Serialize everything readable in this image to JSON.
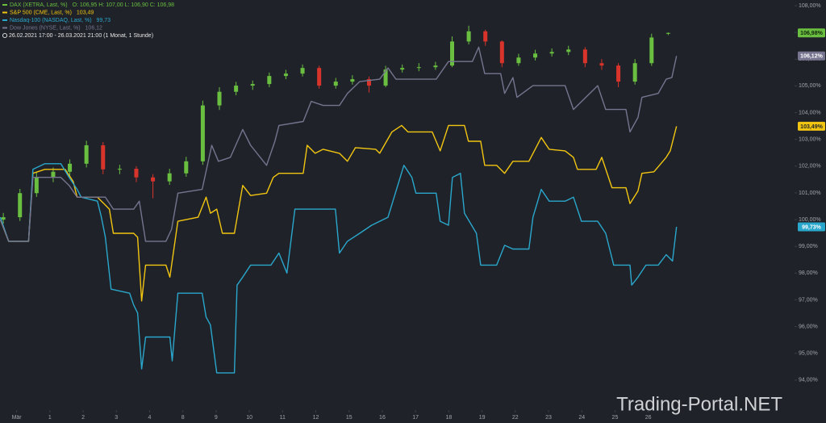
{
  "chart_data": {
    "type": "line",
    "subtitle": "26.02.2021 17:00 - 26.03.2021 21:00  (1 Monat, 1 Stunde)",
    "watermark": "Trading-Portal.NET",
    "xlim": [
      -0.5,
      23.4
    ],
    "xticks": [
      {
        "value": 0,
        "label": "Mär"
      },
      1,
      2,
      3,
      4,
      {
        "value": 5,
        "label": "8"
      },
      {
        "value": 6,
        "label": "9"
      },
      {
        "value": 7,
        "label": "10"
      },
      {
        "value": 8,
        "label": "11"
      },
      {
        "value": 9,
        "label": "12"
      },
      {
        "value": 10,
        "label": "15"
      },
      {
        "value": 11,
        "label": "16"
      },
      {
        "value": 12,
        "label": "17"
      },
      {
        "value": 13,
        "label": "18"
      },
      {
        "value": 14,
        "label": "19"
      },
      {
        "value": 15,
        "label": "22"
      },
      {
        "value": 16,
        "label": "23"
      },
      {
        "value": 17,
        "label": "24"
      },
      {
        "value": 18,
        "label": "25"
      },
      {
        "value": 19,
        "label": "26"
      }
    ],
    "ylim": [
      93,
      108
    ],
    "yticks": [
      {
        "value": 94,
        "label": "94,00%"
      },
      {
        "value": 95,
        "label": "95,00%"
      },
      {
        "value": 96,
        "label": "96,00%"
      },
      {
        "value": 97,
        "label": "97,00%"
      },
      {
        "value": 98,
        "label": "98,00%"
      },
      {
        "value": 99,
        "label": "99,00%"
      },
      {
        "value": 100,
        "label": "100,00%"
      },
      {
        "value": 101,
        "label": "101,00%"
      },
      {
        "value": 102,
        "label": "102,00%"
      },
      {
        "value": 103,
        "label": "103,00%"
      },
      {
        "value": 104,
        "label": "104,00%"
      },
      {
        "value": 105,
        "label": "105,00%"
      },
      {
        "value": 106,
        "label": "106,00%"
      },
      {
        "value": 107,
        "label": "107,00%"
      },
      {
        "value": 108,
        "label": "108,00%"
      }
    ],
    "grid": false,
    "series": [
      {
        "name": "DAX (XETRA, Last, %)",
        "detail": "O: 106,95  H: 107,00  L: 106,90  C: 106,98",
        "type": "candlestick",
        "color": "#6abf40",
        "down_color": "#d9342b",
        "last_label": "106,98%",
        "x": [
          -0.4,
          0.1,
          0.6,
          1.1,
          1.6,
          2.1,
          2.6,
          3.1,
          3.6,
          4.1,
          4.6,
          5.1,
          5.6,
          6.1,
          6.6,
          7.1,
          7.6,
          8.1,
          8.6,
          9.1,
          9.6,
          10.1,
          10.6,
          11.1,
          11.6,
          12.1,
          12.6,
          13.1,
          13.6,
          14.1,
          14.6,
          15.1,
          15.6,
          16.1,
          16.6,
          17.1,
          17.6,
          18.1,
          18.6,
          19.1,
          19.6
        ],
        "open": [
          100.0,
          100.09,
          100.99,
          101.58,
          101.79,
          102.09,
          102.78,
          101.88,
          101.9,
          101.58,
          101.43,
          101.73,
          102.18,
          104.27,
          104.78,
          105.01,
          105.07,
          105.37,
          105.46,
          105.67,
          105.01,
          105.16,
          105.25,
          105.01,
          105.61,
          105.67,
          105.7,
          105.76,
          106.66,
          107.04,
          106.66,
          105.85,
          106.06,
          106.21,
          106.27,
          106.36,
          105.85,
          105.76,
          105.16,
          105.85,
          106.95
        ],
        "high": [
          100.25,
          101.15,
          101.75,
          101.95,
          102.25,
          102.95,
          102.9,
          102.05,
          102.0,
          101.7,
          101.9,
          102.35,
          104.45,
          104.95,
          105.15,
          105.2,
          105.5,
          105.6,
          105.8,
          105.75,
          105.3,
          105.4,
          105.35,
          105.75,
          105.8,
          105.85,
          105.9,
          106.85,
          107.25,
          107.1,
          106.7,
          106.2,
          106.35,
          106.4,
          106.5,
          106.45,
          106.0,
          105.85,
          106.0,
          106.95,
          107.0
        ],
        "low": [
          99.85,
          99.95,
          100.85,
          101.4,
          101.65,
          101.95,
          101.7,
          101.7,
          101.4,
          100.8,
          101.3,
          101.6,
          102.05,
          104.1,
          104.65,
          104.85,
          104.95,
          105.25,
          105.35,
          104.9,
          104.9,
          105.05,
          104.75,
          104.95,
          105.5,
          105.55,
          105.6,
          105.7,
          106.55,
          106.5,
          105.7,
          105.75,
          105.95,
          106.1,
          106.15,
          105.7,
          105.6,
          104.95,
          105.05,
          105.75,
          106.9
        ],
        "close": [
          100.09,
          100.99,
          101.58,
          101.79,
          102.09,
          102.78,
          101.88,
          101.9,
          101.58,
          101.43,
          101.73,
          102.18,
          104.27,
          104.78,
          105.01,
          105.07,
          105.37,
          105.46,
          105.67,
          105.01,
          105.16,
          105.25,
          105.01,
          105.61,
          105.67,
          105.7,
          105.76,
          106.66,
          107.04,
          106.66,
          105.85,
          106.06,
          106.21,
          106.27,
          106.36,
          105.85,
          105.76,
          105.16,
          105.85,
          106.81,
          106.98
        ]
      },
      {
        "name": "S&P 500 (CME, Last, %)",
        "detail": "103,49",
        "color": "#f2c511",
        "last_label": "103,49%",
        "x": [
          -0.49,
          -0.24,
          0.36,
          0.49,
          0.85,
          1.46,
          1.7,
          1.82,
          2.43,
          2.79,
          2.91,
          3.52,
          3.64,
          3.76,
          3.88,
          4.49,
          4.61,
          4.85,
          5.46,
          5.7,
          5.83,
          6.02,
          6.19,
          6.55,
          6.8,
          7.04,
          7.52,
          7.72,
          7.89,
          8.62,
          8.74,
          8.98,
          9.22,
          9.71,
          9.95,
          10.19,
          10.8,
          10.92,
          11.29,
          11.58,
          11.77,
          12.5,
          12.74,
          12.99,
          13.47,
          13.59,
          13.96,
          14.08,
          14.44,
          14.68,
          14.93,
          15.41,
          15.78,
          16.02,
          16.5,
          16.75,
          16.87,
          17.43,
          17.6,
          17.91,
          18.33,
          18.45,
          18.69,
          18.81,
          19.17,
          19.54,
          19.66,
          19.85
        ],
        "values": [
          100.0,
          99.19,
          99.19,
          101.73,
          101.88,
          101.88,
          101.43,
          100.84,
          100.84,
          100.39,
          99.49,
          99.49,
          99.34,
          96.96,
          98.3,
          98.3,
          97.85,
          99.94,
          100.09,
          100.84,
          100.24,
          100.39,
          99.49,
          99.49,
          101.28,
          100.9,
          100.99,
          101.58,
          101.73,
          101.73,
          102.78,
          102.48,
          102.63,
          102.48,
          102.18,
          102.69,
          102.63,
          102.48,
          103.28,
          103.52,
          103.28,
          103.28,
          102.57,
          103.52,
          103.52,
          102.93,
          102.93,
          102.03,
          102.03,
          101.73,
          102.18,
          102.18,
          103.07,
          102.63,
          102.57,
          102.33,
          101.88,
          101.88,
          102.33,
          101.19,
          101.19,
          100.6,
          101.07,
          101.73,
          101.79,
          102.33,
          102.57,
          103.49
        ]
      },
      {
        "name": "Nasdaq-100 (NASDAQ, Last, %)",
        "detail": "99,73",
        "color": "#2aa7cc",
        "last_label": "99,73%",
        "x": [
          -0.49,
          -0.24,
          0.36,
          0.49,
          0.85,
          1.33,
          1.58,
          1.82,
          1.94,
          2.43,
          2.55,
          2.67,
          2.84,
          3.4,
          3.52,
          3.64,
          3.76,
          3.88,
          4.61,
          4.68,
          4.85,
          5.58,
          5.7,
          5.83,
          6.02,
          6.55,
          6.63,
          6.8,
          7.04,
          7.65,
          7.89,
          8.13,
          8.37,
          9.59,
          9.71,
          9.95,
          10.32,
          10.68,
          11.17,
          11.65,
          11.89,
          12.01,
          12.62,
          12.74,
          12.99,
          13.11,
          13.35,
          13.47,
          13.83,
          13.96,
          14.44,
          14.68,
          14.93,
          15.41,
          15.53,
          15.78,
          16.02,
          16.5,
          16.75,
          16.99,
          17.48,
          17.72,
          17.96,
          18.45,
          18.5,
          18.69,
          18.93,
          19.3,
          19.54,
          19.73,
          19.85
        ],
        "values": [
          100.09,
          99.19,
          99.19,
          101.88,
          102.09,
          102.09,
          101.58,
          101.13,
          100.84,
          100.69,
          100.09,
          99.34,
          97.4,
          97.25,
          96.81,
          96.51,
          94.42,
          95.61,
          95.61,
          94.72,
          97.25,
          97.25,
          96.36,
          96.06,
          94.27,
          94.27,
          97.55,
          97.85,
          98.3,
          98.3,
          98.75,
          98.0,
          100.39,
          100.39,
          98.75,
          99.19,
          99.49,
          99.79,
          100.09,
          102.03,
          101.58,
          100.99,
          100.99,
          99.94,
          99.79,
          101.58,
          101.73,
          100.24,
          99.49,
          98.3,
          98.3,
          99.04,
          98.9,
          98.9,
          100.09,
          101.13,
          100.69,
          100.69,
          100.84,
          99.94,
          99.94,
          99.49,
          98.3,
          98.3,
          97.55,
          97.85,
          98.3,
          98.3,
          98.69,
          98.45,
          99.73
        ]
      },
      {
        "name": "Dow Jones (NYSE, Last, %)",
        "detail": "106,12",
        "color": "#76748f",
        "last_label": "106,12%",
        "x": [
          -0.49,
          -0.24,
          0.36,
          0.49,
          0.85,
          1.33,
          1.58,
          1.82,
          2.67,
          2.91,
          3.52,
          3.69,
          3.88,
          4.49,
          4.66,
          4.85,
          5.58,
          5.87,
          6.07,
          6.43,
          6.8,
          7.04,
          7.52,
          7.77,
          7.89,
          8.62,
          8.86,
          9.22,
          9.71,
          9.95,
          10.32,
          10.92,
          11.17,
          11.41,
          12.62,
          12.99,
          13.71,
          13.9,
          14.08,
          14.56,
          14.68,
          14.93,
          15.05,
          15.53,
          16.5,
          16.75,
          17.48,
          17.72,
          18.33,
          18.45,
          18.69,
          18.81,
          19.3,
          19.54,
          19.71,
          19.85
        ],
        "values": [
          100.0,
          99.19,
          99.19,
          101.58,
          101.58,
          101.58,
          101.28,
          100.84,
          100.84,
          100.39,
          100.39,
          100.69,
          99.19,
          99.19,
          99.64,
          100.99,
          101.13,
          102.78,
          102.18,
          102.33,
          103.37,
          102.78,
          102.03,
          102.93,
          103.52,
          103.67,
          104.42,
          104.27,
          104.27,
          104.72,
          105.16,
          105.25,
          105.67,
          105.25,
          105.25,
          105.91,
          105.91,
          106.45,
          105.46,
          105.46,
          104.72,
          105.31,
          104.57,
          105.01,
          105.01,
          104.12,
          105.01,
          104.12,
          104.12,
          103.28,
          103.82,
          104.57,
          104.72,
          105.25,
          105.31,
          106.12
        ]
      }
    ]
  }
}
